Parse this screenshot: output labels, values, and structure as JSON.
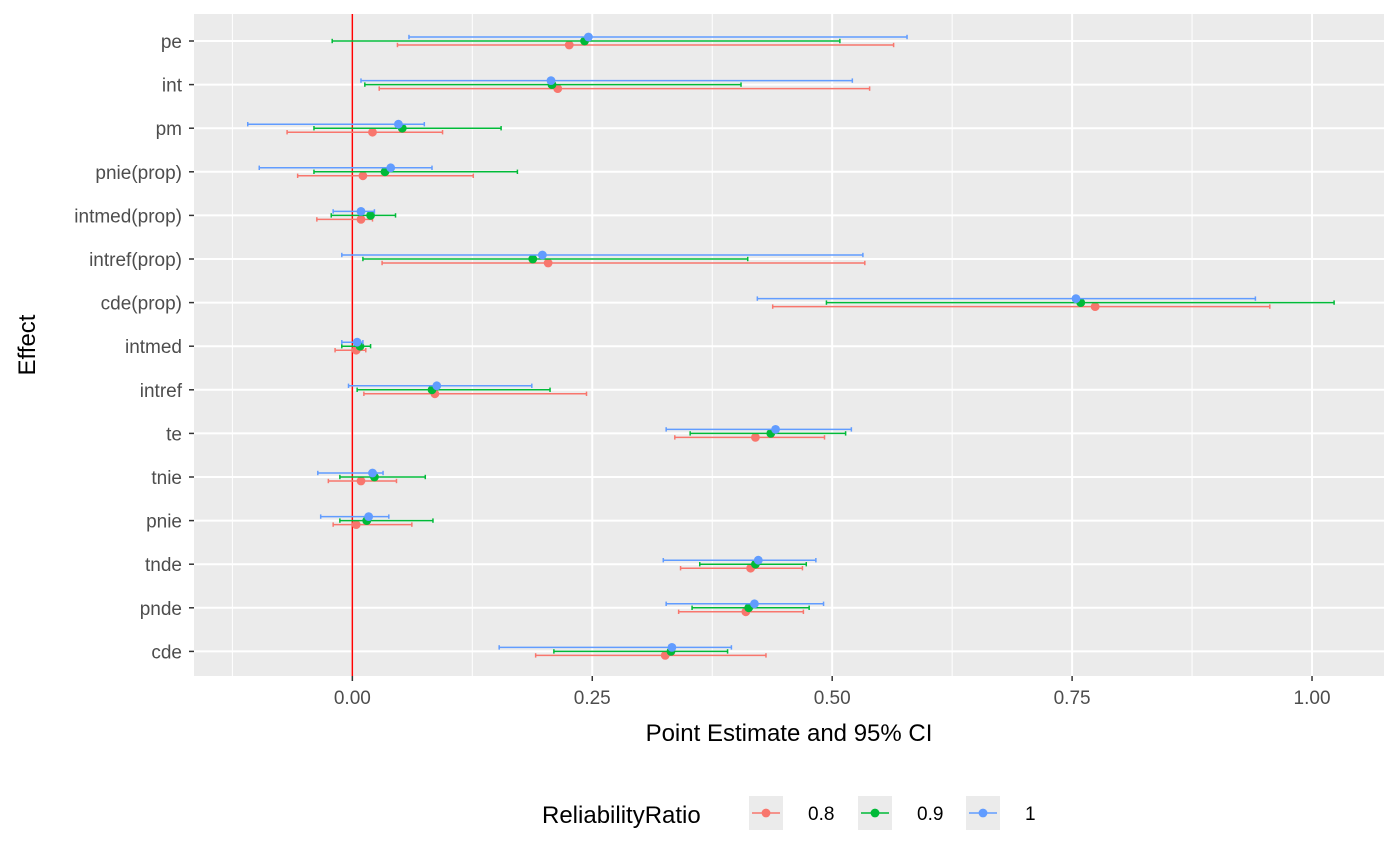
{
  "chart_data": {
    "type": "errorbar",
    "xlabel": "Point Estimate and 95% CI",
    "ylabel": "Effect",
    "xlim": [
      -0.165,
      1.075
    ],
    "x_ticks": [
      0.0,
      0.25,
      0.5,
      0.75,
      1.0
    ],
    "x_tick_labels": [
      "0.00",
      "0.25",
      "0.50",
      "0.75",
      "1.00"
    ],
    "grid": true,
    "reference_line": {
      "x": 0,
      "color": "#ff0000"
    },
    "categories": [
      "pe",
      "int",
      "pm",
      "pnie(prop)",
      "intmed(prop)",
      "intref(prop)",
      "cde(prop)",
      "intmed",
      "intref",
      "te",
      "tnie",
      "pnie",
      "tnde",
      "pnde",
      "cde"
    ],
    "legend": {
      "title": "ReliabilityRatio",
      "position": "bottom",
      "entries": [
        "0.8",
        "0.9",
        "1"
      ]
    },
    "series": [
      {
        "name": "0.8",
        "color": "#f8766d",
        "points": [
          {
            "effect": "pe",
            "estimate": 0.226,
            "low": 0.047,
            "high": 0.564
          },
          {
            "effect": "int",
            "estimate": 0.214,
            "low": 0.028,
            "high": 0.539
          },
          {
            "effect": "pm",
            "estimate": 0.021,
            "low": -0.068,
            "high": 0.094
          },
          {
            "effect": "pnie(prop)",
            "estimate": 0.011,
            "low": -0.057,
            "high": 0.126
          },
          {
            "effect": "intmed(prop)",
            "estimate": 0.009,
            "low": -0.037,
            "high": 0.021
          },
          {
            "effect": "intref(prop)",
            "estimate": 0.204,
            "low": 0.031,
            "high": 0.534
          },
          {
            "effect": "cde(prop)",
            "estimate": 0.774,
            "low": 0.438,
            "high": 0.956
          },
          {
            "effect": "intmed",
            "estimate": 0.004,
            "low": -0.018,
            "high": 0.014
          },
          {
            "effect": "intref",
            "estimate": 0.086,
            "low": 0.012,
            "high": 0.244
          },
          {
            "effect": "te",
            "estimate": 0.42,
            "low": 0.336,
            "high": 0.492
          },
          {
            "effect": "tnie",
            "estimate": 0.009,
            "low": -0.025,
            "high": 0.046
          },
          {
            "effect": "pnie",
            "estimate": 0.004,
            "low": -0.02,
            "high": 0.062
          },
          {
            "effect": "tnde",
            "estimate": 0.415,
            "low": 0.342,
            "high": 0.469
          },
          {
            "effect": "pnde",
            "estimate": 0.41,
            "low": 0.34,
            "high": 0.47
          },
          {
            "effect": "cde",
            "estimate": 0.326,
            "low": 0.191,
            "high": 0.431
          }
        ]
      },
      {
        "name": "0.9",
        "color": "#00ba38",
        "points": [
          {
            "effect": "pe",
            "estimate": 0.242,
            "low": -0.021,
            "high": 0.508
          },
          {
            "effect": "int",
            "estimate": 0.208,
            "low": 0.013,
            "high": 0.405
          },
          {
            "effect": "pm",
            "estimate": 0.052,
            "low": -0.04,
            "high": 0.155
          },
          {
            "effect": "pnie(prop)",
            "estimate": 0.034,
            "low": -0.04,
            "high": 0.172
          },
          {
            "effect": "intmed(prop)",
            "estimate": 0.019,
            "low": -0.022,
            "high": 0.045
          },
          {
            "effect": "intref(prop)",
            "estimate": 0.188,
            "low": 0.011,
            "high": 0.412
          },
          {
            "effect": "cde(prop)",
            "estimate": 0.759,
            "low": 0.494,
            "high": 1.023
          },
          {
            "effect": "intmed",
            "estimate": 0.008,
            "low": -0.011,
            "high": 0.019
          },
          {
            "effect": "intref",
            "estimate": 0.083,
            "low": 0.005,
            "high": 0.206
          },
          {
            "effect": "te",
            "estimate": 0.436,
            "low": 0.352,
            "high": 0.514
          },
          {
            "effect": "tnie",
            "estimate": 0.023,
            "low": -0.013,
            "high": 0.076
          },
          {
            "effect": "pnie",
            "estimate": 0.015,
            "low": -0.013,
            "high": 0.084
          },
          {
            "effect": "tnde",
            "estimate": 0.42,
            "low": 0.362,
            "high": 0.473
          },
          {
            "effect": "pnde",
            "estimate": 0.413,
            "low": 0.354,
            "high": 0.476
          },
          {
            "effect": "cde",
            "estimate": 0.332,
            "low": 0.21,
            "high": 0.391
          }
        ]
      },
      {
        "name": "1",
        "color": "#619cff",
        "points": [
          {
            "effect": "pe",
            "estimate": 0.246,
            "low": 0.059,
            "high": 0.578
          },
          {
            "effect": "int",
            "estimate": 0.207,
            "low": 0.009,
            "high": 0.521
          },
          {
            "effect": "pm",
            "estimate": 0.048,
            "low": -0.109,
            "high": 0.075
          },
          {
            "effect": "pnie(prop)",
            "estimate": 0.04,
            "low": -0.097,
            "high": 0.083
          },
          {
            "effect": "intmed(prop)",
            "estimate": 0.009,
            "low": -0.02,
            "high": 0.023
          },
          {
            "effect": "intref(prop)",
            "estimate": 0.198,
            "low": -0.011,
            "high": 0.532
          },
          {
            "effect": "cde(prop)",
            "estimate": 0.754,
            "low": 0.422,
            "high": 0.941
          },
          {
            "effect": "intmed",
            "estimate": 0.005,
            "low": -0.011,
            "high": 0.011
          },
          {
            "effect": "intref",
            "estimate": 0.088,
            "low": -0.004,
            "high": 0.187
          },
          {
            "effect": "te",
            "estimate": 0.441,
            "low": 0.327,
            "high": 0.52
          },
          {
            "effect": "tnie",
            "estimate": 0.021,
            "low": -0.036,
            "high": 0.032
          },
          {
            "effect": "pnie",
            "estimate": 0.017,
            "low": -0.033,
            "high": 0.038
          },
          {
            "effect": "tnde",
            "estimate": 0.423,
            "low": 0.324,
            "high": 0.483
          },
          {
            "effect": "pnde",
            "estimate": 0.419,
            "low": 0.327,
            "high": 0.491
          },
          {
            "effect": "cde",
            "estimate": 0.333,
            "low": 0.153,
            "high": 0.395
          }
        ]
      }
    ]
  }
}
